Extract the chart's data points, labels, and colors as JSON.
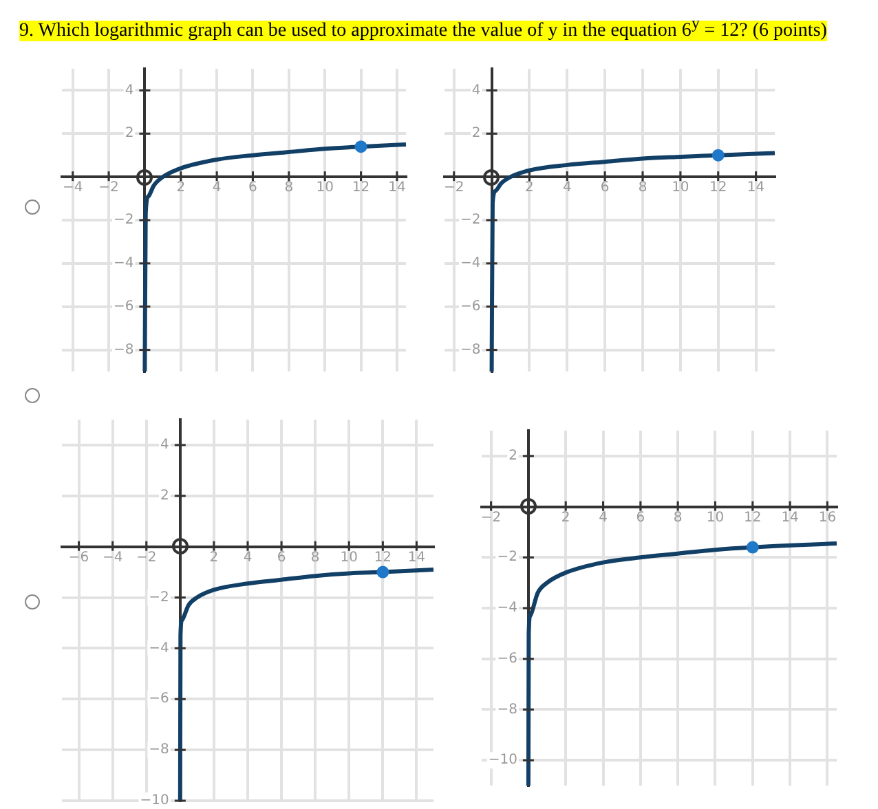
{
  "chart_data": [
    {
      "type": "line",
      "title": "9. Which logarithmic graph can be used to approximate the value of y in the equation 6$^{y}$ = 12? (6 points)",
      "xlim": [
        -4.6,
        14.5
      ],
      "ylim": [
        -9,
        5
      ],
      "xticks": [
        -4,
        -2,
        2,
        4,
        6,
        8,
        10,
        12,
        14
      ],
      "yticks": [
        -8,
        -6,
        -4,
        -2,
        2,
        4
      ],
      "grid": true,
      "series": [
        {
          "type": "line",
          "color": "#123f66",
          "marker": "none",
          "x": [
            0,
            0.05,
            0.2,
            0.5,
            1,
            2,
            4,
            6,
            8,
            10,
            12,
            14.5
          ],
          "values": [
            -9,
            -1.7,
            -0.9,
            -0.4,
            0,
            0.4,
            0.8,
            1,
            1.15,
            1.3,
            1.4,
            1.5
          ]
        },
        {
          "type": "scatter",
          "color": "#1f78c8",
          "marker": "circle",
          "x": [
            12
          ],
          "values": [
            1.4
          ]
        }
      ]
    },
    {
      "type": "line",
      "xlim": [
        -2.5,
        15
      ],
      "ylim": [
        -9,
        5
      ],
      "xticks": [
        -2,
        2,
        4,
        6,
        8,
        10,
        12,
        14
      ],
      "yticks": [
        -8,
        -6,
        -4,
        -2,
        2,
        4
      ],
      "grid": true,
      "series": [
        {
          "type": "line",
          "color": "#123f66",
          "marker": "none",
          "x": [
            0,
            0.05,
            0.2,
            0.5,
            1,
            2,
            4,
            6,
            8,
            10,
            12,
            15
          ],
          "values": [
            -9,
            -1.2,
            -0.65,
            -0.3,
            0,
            0.3,
            0.55,
            0.7,
            0.85,
            0.93,
            1,
            1.1
          ]
        },
        {
          "type": "scatter",
          "color": "#1f78c8",
          "marker": "circle",
          "x": [
            12
          ],
          "values": [
            1
          ]
        }
      ]
    },
    {
      "type": "line",
      "xlim": [
        -7,
        15
      ],
      "ylim": [
        -10,
        5
      ],
      "xticks": [
        -6,
        -4,
        -2,
        2,
        4,
        6,
        8,
        10,
        12,
        14
      ],
      "yticks": [
        -10,
        -8,
        -6,
        -4,
        -2,
        2,
        4
      ],
      "grid": true,
      "series": [
        {
          "type": "line",
          "color": "#123f66",
          "marker": "none",
          "x": [
            0,
            0.02,
            0.1,
            0.5,
            1,
            2,
            4,
            6,
            8,
            10,
            12,
            15
          ],
          "values": [
            -10,
            -3.5,
            -2.9,
            -2.3,
            -2,
            -1.7,
            -1.45,
            -1.3,
            -1.15,
            -1.05,
            -1,
            -0.9
          ]
        },
        {
          "type": "scatter",
          "color": "#1f78c8",
          "marker": "circle",
          "x": [
            12
          ],
          "values": [
            -1
          ]
        }
      ]
    },
    {
      "type": "line",
      "xlim": [
        -2.5,
        16.5
      ],
      "ylim": [
        -11,
        3
      ],
      "xticks": [
        -2,
        2,
        4,
        6,
        8,
        10,
        12,
        14,
        16
      ],
      "yticks": [
        -10,
        -8,
        -6,
        -4,
        -2,
        2
      ],
      "grid": true,
      "series": [
        {
          "type": "line",
          "color": "#123f66",
          "marker": "none",
          "x": [
            0,
            0.02,
            0.1,
            0.5,
            1,
            2,
            4,
            6,
            8,
            10,
            12,
            16.5
          ],
          "values": [
            -11,
            -5,
            -4.3,
            -3.4,
            -3,
            -2.6,
            -2.2,
            -2,
            -1.85,
            -1.7,
            -1.6,
            -1.45
          ]
        },
        {
          "type": "scatter",
          "color": "#1f78c8",
          "marker": "circle",
          "x": [
            12
          ],
          "values": [
            -1.6
          ]
        }
      ]
    }
  ]
}
